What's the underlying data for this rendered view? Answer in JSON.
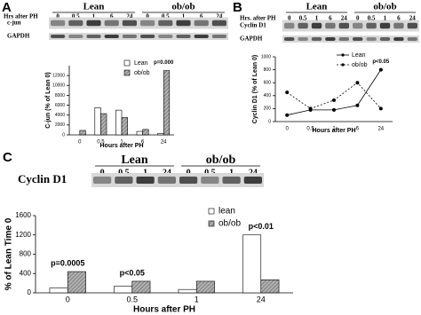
{
  "panel_letters": [
    "A",
    "B",
    "C"
  ],
  "blots": [
    {
      "groups": [
        "Lean",
        "ob/ob"
      ],
      "time_label": "Hrs after PH",
      "times": [
        "0",
        "0.5",
        "1",
        "6",
        "24",
        "0",
        "0.5",
        "1",
        "6",
        "24"
      ],
      "rows": [
        "c-jun",
        "GAPDH"
      ]
    },
    {
      "groups": [
        "Lean",
        "ob/ob"
      ],
      "time_label": "Hrs. after PH",
      "times": [
        "0",
        "0.5",
        "1",
        "6",
        "24",
        "0",
        "0.5",
        "1",
        "6",
        "24"
      ],
      "rows": [
        "Cyclin D1",
        "GAPDH"
      ]
    },
    {
      "groups": [
        "Lean",
        "ob/ob"
      ],
      "times": [
        "0",
        "0.5",
        "1",
        "24",
        "0",
        "0.5",
        "1",
        "24"
      ],
      "rows": [
        "Cyclin D1"
      ]
    }
  ],
  "chart_data": [
    {
      "type": "bar",
      "y_label": "C-jun (% of Lean 0)",
      "x_label": "Hours after PH",
      "categories": [
        "0",
        "0.5",
        "1",
        "6",
        "24"
      ],
      "series": [
        {
          "name": "Lean",
          "color": "#ffffff",
          "values": [
            0,
            5500,
            5000,
            700,
            300
          ]
        },
        {
          "name": "ob/ob",
          "color": "#a0a0a0",
          "values": [
            900,
            4300,
            3500,
            1100,
            13000
          ]
        }
      ],
      "ylim": [
        0,
        14000
      ],
      "yticks": [
        0,
        2000,
        4000,
        6000,
        8000,
        10000,
        12000
      ],
      "annotations": [
        {
          "text": "p=0.000",
          "x": "24"
        }
      ]
    },
    {
      "type": "line",
      "y_label": "Cyclin D1 (% of Lean 0)",
      "x_label": "Hours after PH",
      "categories": [
        "0",
        "0.5",
        "1",
        "6",
        "24"
      ],
      "series": [
        {
          "name": "Lean",
          "color": "#000000",
          "dashed": false,
          "values": [
            100,
            180,
            180,
            250,
            800
          ]
        },
        {
          "name": "ob/ob",
          "color": "#000000",
          "dashed": true,
          "values": [
            450,
            200,
            330,
            600,
            200
          ]
        }
      ],
      "ylim": [
        0,
        1000
      ],
      "yticks": [
        0,
        200,
        400,
        600,
        800,
        1000
      ],
      "annotations": [
        {
          "text": "p<0.05",
          "x": "24"
        }
      ]
    },
    {
      "type": "bar",
      "y_label": "% of Lean Time 0",
      "x_label": "Hours after PH",
      "categories": [
        "0",
        "0.5",
        "1",
        "24"
      ],
      "series": [
        {
          "name": "lean",
          "color": "#ffffff",
          "values": [
            100,
            140,
            70,
            1200
          ]
        },
        {
          "name": "ob/ob",
          "color": "#a0a0a0",
          "values": [
            440,
            240,
            240,
            270
          ]
        }
      ],
      "ylim": [
        0,
        1600
      ],
      "yticks": [
        0,
        400,
        800,
        1200,
        1600
      ],
      "annotations": [
        {
          "text": "p=0.0005",
          "x": "0"
        },
        {
          "text": "p<0.05",
          "x": "0.5"
        },
        {
          "text": "p<0.01",
          "x": "24"
        }
      ]
    }
  ]
}
